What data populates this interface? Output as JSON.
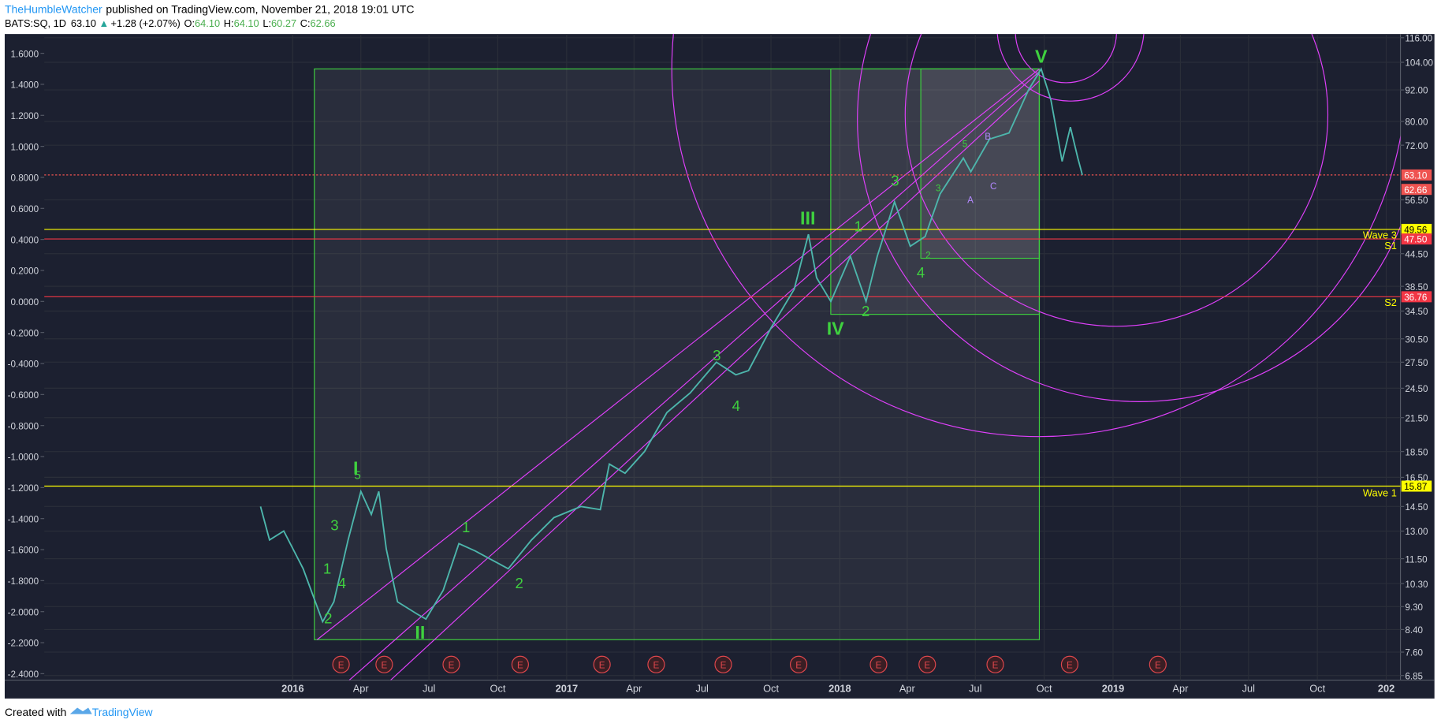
{
  "header": {
    "author": "TheHumbleWatcher",
    "published": "published on TradingView.com, November 21, 2018 19:01 UTC",
    "symbol": "BATS:SQ, 1D",
    "last": "63.10",
    "arrow": "▲",
    "change": "+1.28 (+2.07%)",
    "open_label": "O:",
    "open": "64.10",
    "high_label": "H:",
    "high": "64.10",
    "low_label": "L:",
    "low": "60.27",
    "close_label": "C:",
    "close": "62.66"
  },
  "footer": {
    "text": "Created with",
    "brand": "TradingView"
  },
  "chart_data": {
    "type": "line",
    "color": "#4db6ac",
    "log_scale": true,
    "grid": true,
    "x": [
      "2015-11-19",
      "2015-12-01",
      "2015-12-20",
      "2016-01-15",
      "2016-02-10",
      "2016-02-25",
      "2016-03-15",
      "2016-04-01",
      "2016-04-15",
      "2016-04-25",
      "2016-05-05",
      "2016-05-20",
      "2016-06-15",
      "2016-06-27",
      "2016-07-20",
      "2016-08-10",
      "2016-09-01",
      "2016-09-20",
      "2016-10-15",
      "2016-11-15",
      "2016-12-15",
      "2017-01-20",
      "2017-02-15",
      "2017-02-27",
      "2017-03-20",
      "2017-04-15",
      "2017-05-15",
      "2017-06-15",
      "2017-07-20",
      "2017-08-15",
      "2017-09-01",
      "2017-10-01",
      "2017-11-01",
      "2017-11-20",
      "2017-12-01",
      "2017-12-20",
      "2018-01-15",
      "2018-02-05",
      "2018-02-20",
      "2018-03-15",
      "2018-04-05",
      "2018-04-25",
      "2018-05-15",
      "2018-06-15",
      "2018-06-25",
      "2018-07-20",
      "2018-08-15",
      "2018-09-10",
      "2018-09-27",
      "2018-10-10",
      "2018-10-25",
      "2018-11-05",
      "2018-11-15",
      "2018-11-21"
    ],
    "values": [
      14.5,
      12.5,
      13,
      11,
      8.7,
      9.5,
      12.5,
      15.5,
      14,
      15.5,
      12,
      9.5,
      9,
      8.8,
      10,
      12.3,
      11.9,
      11.5,
      11,
      12.5,
      13.8,
      14.5,
      14.3,
      17.5,
      16.8,
      18.5,
      22,
      24,
      27.5,
      26,
      26.5,
      32,
      38,
      48.5,
      40,
      36,
      44,
      36,
      44,
      56,
      46,
      48,
      58,
      68,
      64,
      74,
      76,
      92,
      101,
      88,
      67,
      78,
      68,
      63.1
    ],
    "xlim": [
      "2015-02-03",
      "2020-01-20"
    ],
    "xticks": [
      {
        "value": "2016-01-01",
        "label": "2016"
      },
      {
        "value": "2016-04-01",
        "label": "Apr"
      },
      {
        "value": "2016-07-01",
        "label": "Jul"
      },
      {
        "value": "2016-10-01",
        "label": "Oct"
      },
      {
        "value": "2017-01-01",
        "label": "2017"
      },
      {
        "value": "2017-04-01",
        "label": "Apr"
      },
      {
        "value": "2017-07-01",
        "label": "Jul"
      },
      {
        "value": "2017-10-01",
        "label": "Oct"
      },
      {
        "value": "2018-01-01",
        "label": "2018"
      },
      {
        "value": "2018-04-01",
        "label": "Apr"
      },
      {
        "value": "2018-07-01",
        "label": "Jul"
      },
      {
        "value": "2018-10-01",
        "label": "Oct"
      },
      {
        "value": "2019-01-01",
        "label": "2019"
      },
      {
        "value": "2019-04-01",
        "label": "Apr"
      },
      {
        "value": "2019-07-01",
        "label": "Jul"
      },
      {
        "value": "2019-10-01",
        "label": "Oct"
      },
      {
        "value": "2020-01-01",
        "label": "202"
      }
    ],
    "ylim": [
      6.85,
      116
    ],
    "yticks": [
      {
        "value": 116,
        "label": "116.00"
      },
      {
        "value": 104,
        "label": "104.00"
      },
      {
        "value": 92,
        "label": "92.00"
      },
      {
        "value": 80,
        "label": "80.00"
      },
      {
        "value": 72,
        "label": "72.00"
      },
      {
        "value": 56.5,
        "label": "56.50"
      },
      {
        "value": 44.5,
        "label": "44.50"
      },
      {
        "value": 38.5,
        "label": "38.50"
      },
      {
        "value": 34.5,
        "label": "34.50"
      },
      {
        "value": 30.5,
        "label": "30.50"
      },
      {
        "value": 27.5,
        "label": "27.50"
      },
      {
        "value": 24.5,
        "label": "24.50"
      },
      {
        "value": 21.5,
        "label": "21.50"
      },
      {
        "value": 18.5,
        "label": "18.50"
      },
      {
        "value": 16.5,
        "label": "16.50"
      },
      {
        "value": 14.5,
        "label": "14.50"
      },
      {
        "value": 13,
        "label": "13.00"
      },
      {
        "value": 11.5,
        "label": "11.50"
      },
      {
        "value": 10.3,
        "label": "10.30"
      },
      {
        "value": 9.3,
        "label": "9.30"
      },
      {
        "value": 8.4,
        "label": "8.40"
      },
      {
        "value": 7.6,
        "label": "7.60"
      },
      {
        "value": 6.85,
        "label": "6.85"
      }
    ],
    "y2lim": [
      -2.4,
      1.6
    ],
    "y2ticks": [
      {
        "value": 1.6,
        "label": "1.6000"
      },
      {
        "value": 1.4,
        "label": "1.4000"
      },
      {
        "value": 1.2,
        "label": "1.2000"
      },
      {
        "value": 1,
        "label": "1.0000"
      },
      {
        "value": 0.8,
        "label": "0.8000"
      },
      {
        "value": 0.6,
        "label": "0.6000"
      },
      {
        "value": 0.4,
        "label": "0.4000"
      },
      {
        "value": 0.2,
        "label": "0.2000"
      },
      {
        "value": 0,
        "label": "0.0000"
      },
      {
        "value": -0.2,
        "label": "-0.2000"
      },
      {
        "value": -0.4,
        "label": "-0.4000"
      },
      {
        "value": -0.6,
        "label": "-0.6000"
      },
      {
        "value": -0.8,
        "label": "-0.8000"
      },
      {
        "value": -1,
        "label": "-1.0000"
      },
      {
        "value": -1.2,
        "label": "-1.2000"
      },
      {
        "value": -1.4,
        "label": "-1.4000"
      },
      {
        "value": -1.6,
        "label": "-1.6000"
      },
      {
        "value": -1.8,
        "label": "-1.8000"
      },
      {
        "value": -2,
        "label": "-2.0000"
      },
      {
        "value": -2.2,
        "label": "-2.2000"
      },
      {
        "value": -2.4,
        "label": "-2.4000"
      }
    ],
    "levels": [
      {
        "name": "Wave 3",
        "value": 49.56,
        "label": "49.56",
        "color": "#ffff00"
      },
      {
        "name": "S1",
        "value": 47.5,
        "label": "47.50",
        "color": "#f23645"
      },
      {
        "name": "S2",
        "value": 36.76,
        "label": "36.76",
        "color": "#f23645"
      },
      {
        "name": "Wave 1",
        "value": 15.87,
        "label": "15.87",
        "color": "#ffff00"
      }
    ],
    "last_prices": [
      {
        "value": 63.1,
        "label": "63.10"
      },
      {
        "value": 62.66,
        "label": "62.66"
      }
    ],
    "earnings_marker": "E",
    "annotations": [
      "I",
      "5",
      "3",
      "1",
      "4",
      "2",
      "II",
      "1",
      "2",
      "3",
      "4",
      "III",
      "IV",
      "1",
      "2",
      "3",
      "4",
      "2",
      "3",
      "5",
      "A",
      "B",
      "C",
      "V"
    ]
  }
}
